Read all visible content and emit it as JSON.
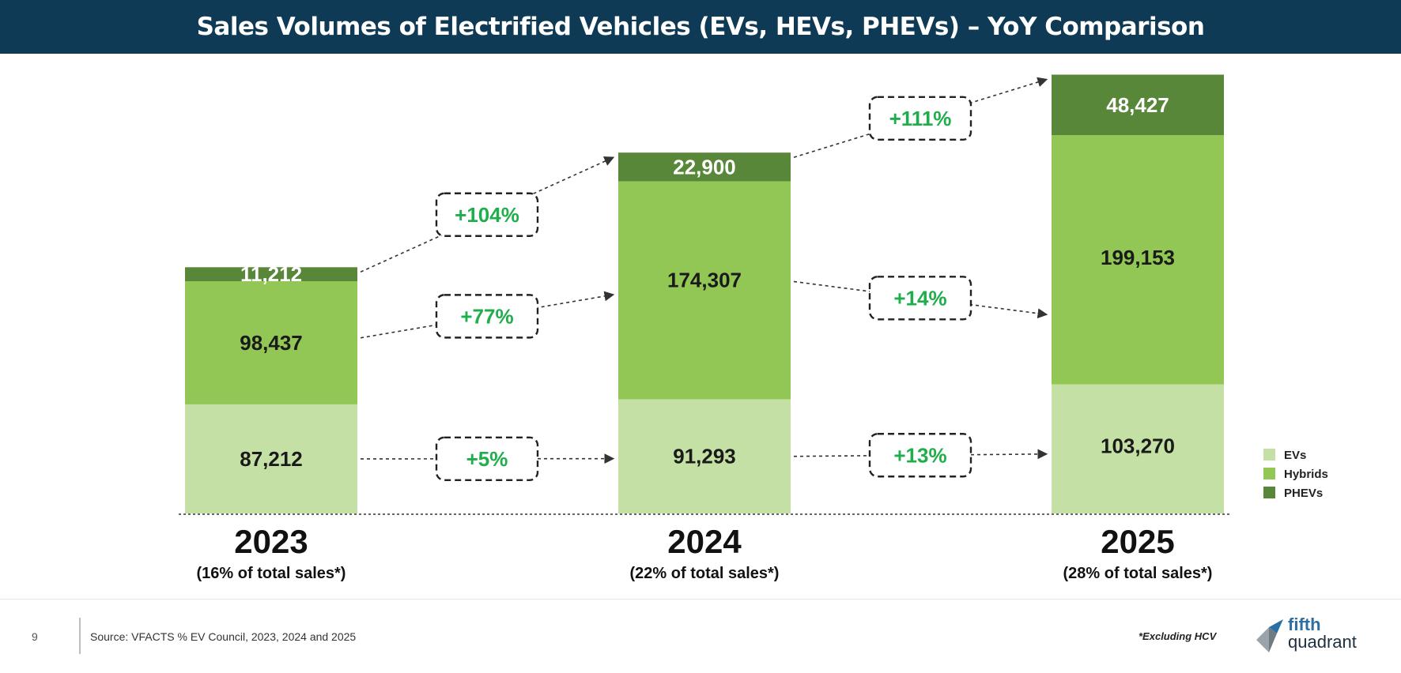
{
  "page": {
    "page_number": "9",
    "source": "Source: VFACTS % EV Council, 2023, 2024 and 2025",
    "footnote": "*Excluding HCV",
    "logo": {
      "line1": "fifth",
      "line2": "quadrant"
    }
  },
  "chart_data": {
    "type": "bar",
    "stacked": true,
    "title": "Sales Volumes of Electrified Vehicles (EVs, HEVs, PHEVs) – YoY Comparison",
    "categories": [
      "2023",
      "2024",
      "2025"
    ],
    "category_sublabels": [
      "(16% of total sales*)",
      "(22% of total sales*)",
      "(28% of total sales*)"
    ],
    "series": [
      {
        "name": "EVs",
        "values": [
          87212,
          91293,
          103270
        ],
        "labels": [
          "87,212",
          "91,293",
          "103,270"
        ],
        "color": "#c5e0a5",
        "text_color": "#1a1a1a"
      },
      {
        "name": "Hybrids",
        "values": [
          98437,
          174307,
          199153
        ],
        "labels": [
          "98,437",
          "174,307",
          "199,153"
        ],
        "color": "#92c756",
        "text_color": "#1a1a1a"
      },
      {
        "name": "PHEVs",
        "values": [
          11212,
          22900,
          48427
        ],
        "labels": [
          "11,212",
          "22,900",
          "48,427"
        ],
        "color": "#58873a",
        "text_color": "#ffffff"
      }
    ],
    "growth_annotations": [
      {
        "series": "PHEVs",
        "labels": [
          "+104%",
          "+111%"
        ]
      },
      {
        "series": "Hybrids",
        "labels": [
          "+77%",
          "+14%"
        ]
      },
      {
        "series": "EVs",
        "labels": [
          "+5%",
          "+13%"
        ]
      }
    ],
    "growth_color": "#1fae4b",
    "legend": {
      "position": "right",
      "order": [
        "EVs",
        "Hybrids",
        "PHEVs"
      ]
    },
    "ylim": [
      0,
      360000
    ],
    "grid": false
  }
}
